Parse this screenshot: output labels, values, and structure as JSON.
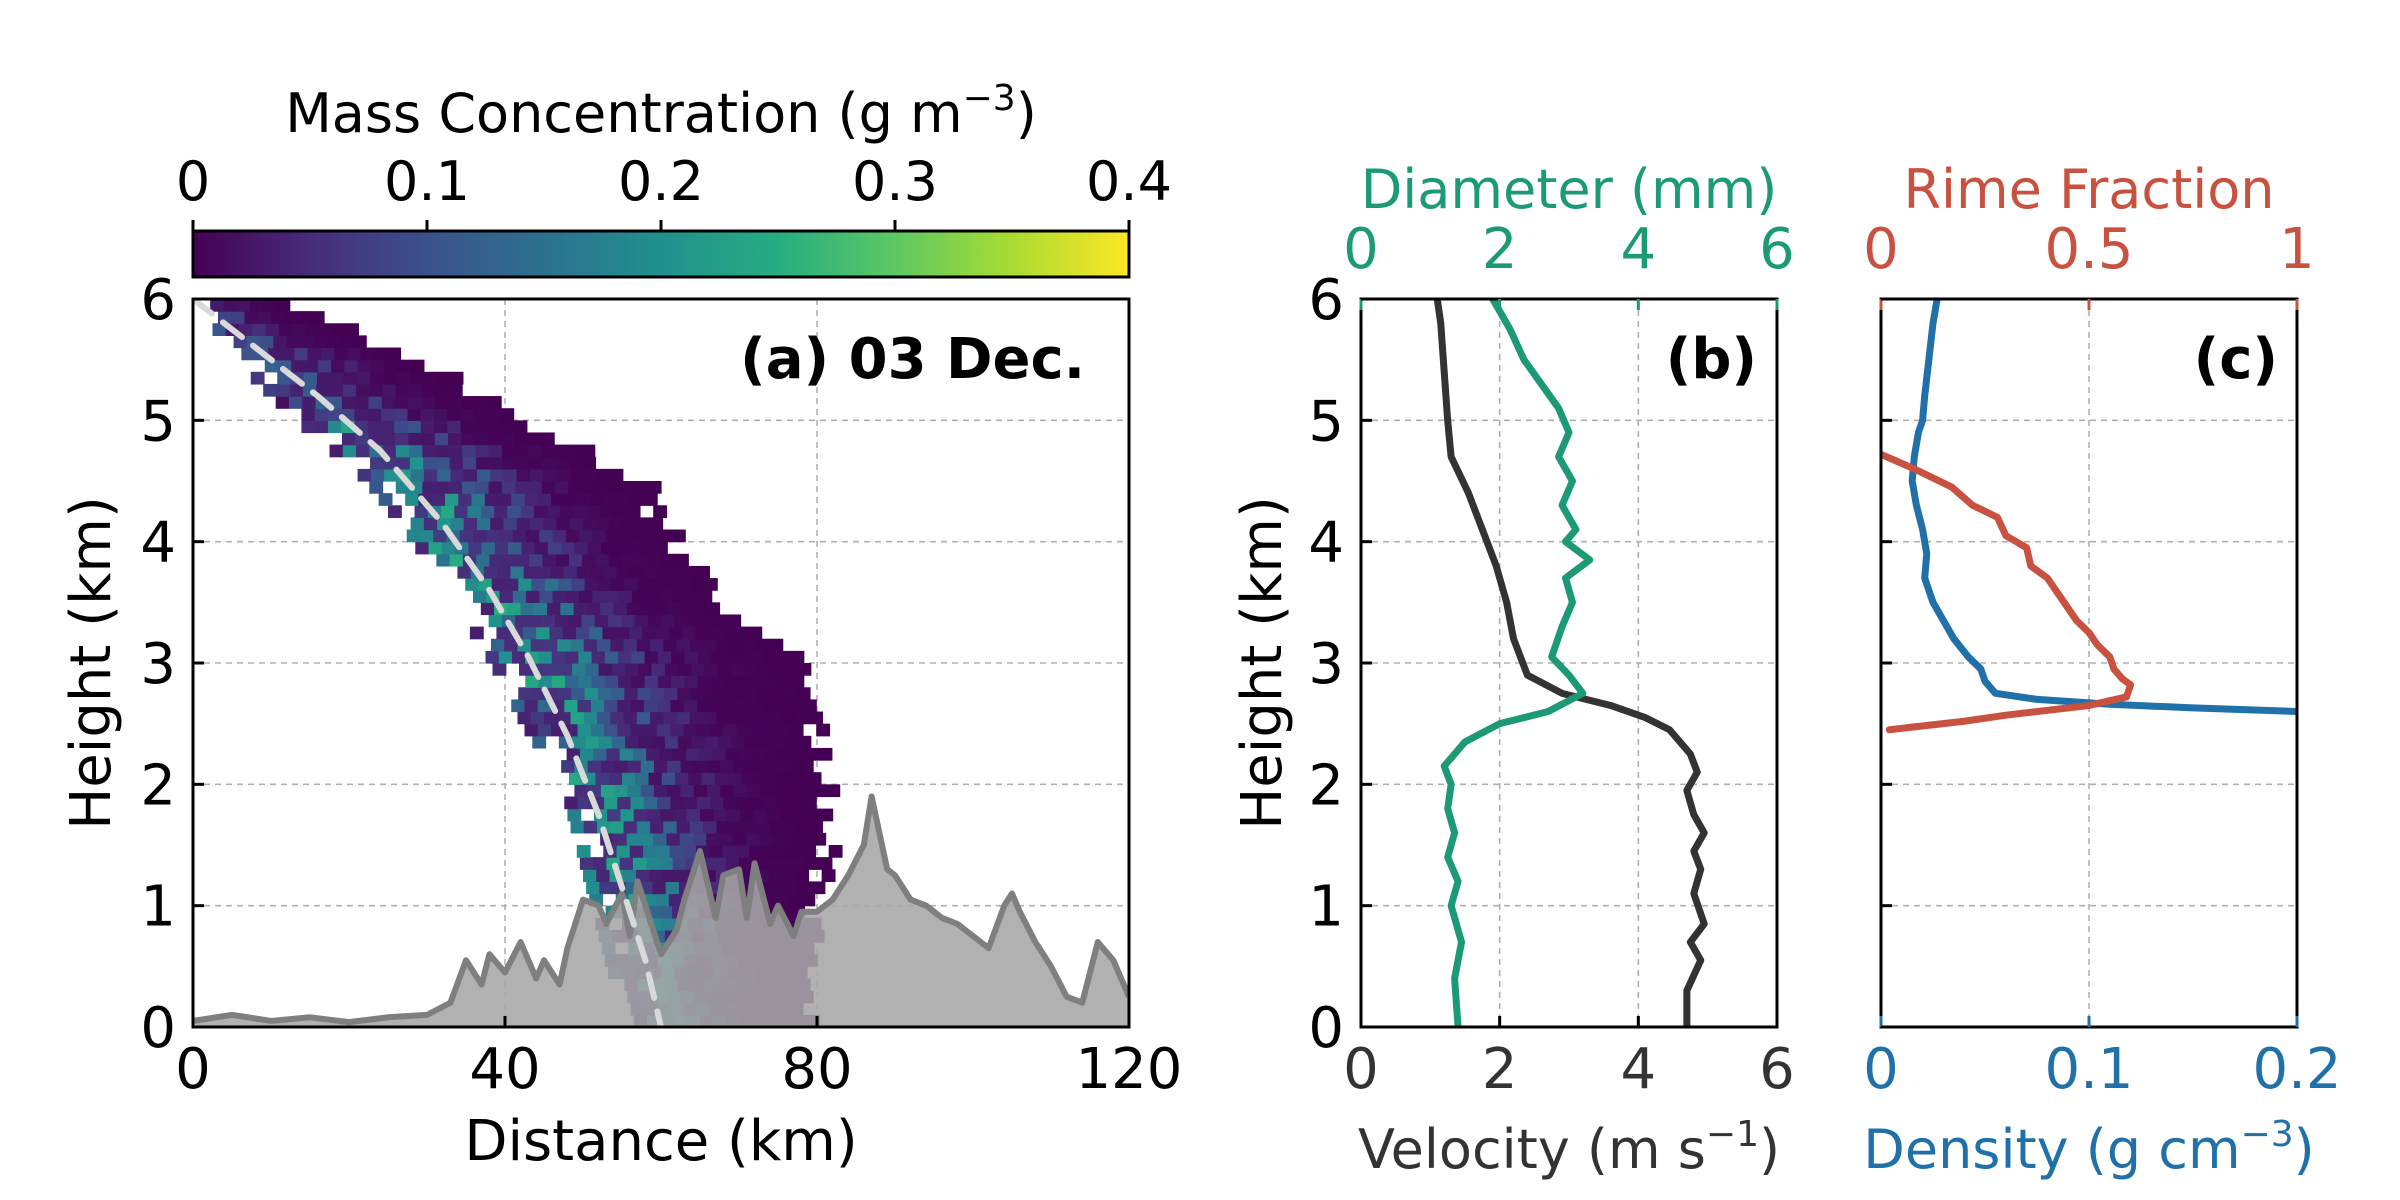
{
  "figure": {
    "colorbar": {
      "label_base": "Mass Concentration (g m",
      "label_sup": "−3",
      "label_end": ")",
      "ticks": [
        "0",
        "0.1",
        "0.2",
        "0.3",
        "0.4"
      ],
      "range": [
        0,
        0.4
      ],
      "colormap": "viridis"
    }
  },
  "colors": {
    "diameter": "#1b9a75",
    "rime": "#c9513f",
    "density": "#2070aa",
    "velocity": "#333333",
    "terrain_fill": "#a6a6a6",
    "terrain_line": "#7f7f7f",
    "trajectory": "#d9d9d9"
  },
  "chart_data": [
    {
      "id": "a",
      "type": "heatmap",
      "title": "(a) 03 Dec.",
      "xlabel": "Distance (km)",
      "ylabel": "Height (km)",
      "xlim": [
        0,
        120
      ],
      "ylim": [
        0,
        6
      ],
      "xticks": [
        "0",
        "40",
        "80",
        "120"
      ],
      "yticks": [
        "0",
        "1",
        "2",
        "3",
        "4",
        "5",
        "6"
      ],
      "grid": true,
      "colorbar_range": [
        0,
        0.4
      ],
      "precip_band": {
        "heights": [
          6.0,
          5.5,
          5.0,
          4.5,
          4.0,
          3.5,
          3.0,
          2.5,
          2.0,
          1.5,
          1.0,
          0.5,
          0.0
        ],
        "left_km": [
          0,
          5,
          13,
          22,
          28,
          33,
          38,
          42,
          47,
          49,
          51,
          53,
          55
        ],
        "right_km": [
          9,
          30,
          42,
          58,
          62,
          69,
          79,
          80,
          82,
          82,
          80,
          79,
          80
        ],
        "peak_concentration": 0.22
      },
      "trajectory_curve": {
        "x": [
          0,
          8,
          16,
          24,
          32,
          38,
          43,
          48,
          52,
          55,
          58,
          60
        ],
        "y": [
          6.0,
          5.6,
          5.2,
          4.75,
          4.15,
          3.6,
          3.05,
          2.4,
          1.75,
          1.15,
          0.55,
          0.0
        ]
      },
      "terrain": {
        "x": [
          0,
          5,
          10,
          15,
          20,
          25,
          30,
          33,
          35,
          37,
          38,
          40,
          42,
          44,
          45,
          47,
          48,
          50,
          52,
          53,
          55,
          56,
          57,
          58,
          60,
          62,
          63,
          65,
          67,
          68,
          70,
          71,
          72,
          74,
          75,
          77,
          78,
          80,
          82,
          84,
          86,
          87,
          88,
          89,
          90,
          92,
          94,
          96,
          98,
          100,
          102,
          104,
          105,
          106,
          108,
          110,
          112,
          114,
          116,
          118,
          120
        ],
        "y": [
          0.05,
          0.1,
          0.05,
          0.08,
          0.04,
          0.08,
          0.1,
          0.2,
          0.55,
          0.35,
          0.6,
          0.45,
          0.7,
          0.4,
          0.55,
          0.35,
          0.65,
          1.05,
          1.0,
          0.85,
          1.1,
          0.75,
          1.2,
          1.0,
          0.6,
          0.8,
          1.05,
          1.45,
          0.9,
          1.25,
          1.3,
          0.9,
          1.35,
          0.85,
          1.0,
          0.75,
          0.95,
          0.95,
          1.05,
          1.25,
          1.5,
          1.9,
          1.6,
          1.3,
          1.25,
          1.05,
          1.0,
          0.9,
          0.85,
          0.75,
          0.65,
          1.0,
          1.1,
          0.95,
          0.7,
          0.5,
          0.25,
          0.2,
          0.7,
          0.55,
          0.25
        ]
      }
    },
    {
      "id": "b",
      "type": "line",
      "title": "(b)",
      "ylabel": "Height (km)",
      "ylim": [
        0,
        6
      ],
      "yticks": [
        "0",
        "1",
        "2",
        "3",
        "4",
        "5",
        "6"
      ],
      "xlabel_bottom_base": "Velocity (m s",
      "xlabel_bottom_sup": "−1",
      "xlabel_bottom_end": ")",
      "xlim_bottom": [
        0,
        6
      ],
      "xticks_bottom": [
        "0",
        "2",
        "4",
        "6"
      ],
      "xlabel_top": "Diameter (mm)",
      "xlim_top": [
        0,
        6
      ],
      "xticks_top": [
        "0",
        "2",
        "4",
        "6"
      ],
      "grid": true,
      "series": [
        {
          "name": "Velocity (m s−1)",
          "axis": "bottom",
          "x": [
            1.1,
            1.15,
            1.2,
            1.25,
            1.3,
            1.55,
            1.75,
            1.95,
            2.1,
            2.2,
            2.4,
            2.9,
            3.6,
            4.1,
            4.45,
            4.6,
            4.75,
            4.85,
            4.7,
            4.8,
            4.95,
            4.8,
            4.9,
            4.8,
            4.95,
            4.75,
            4.9,
            4.7,
            4.7
          ],
          "y": [
            6.0,
            5.8,
            5.4,
            5.0,
            4.7,
            4.4,
            4.1,
            3.8,
            3.5,
            3.2,
            2.9,
            2.75,
            2.65,
            2.55,
            2.45,
            2.35,
            2.25,
            2.1,
            1.95,
            1.75,
            1.6,
            1.45,
            1.3,
            1.1,
            0.85,
            0.7,
            0.55,
            0.3,
            0.0
          ]
        },
        {
          "name": "Diameter (mm)",
          "axis": "top",
          "x": [
            1.9,
            2.15,
            2.35,
            2.6,
            2.85,
            3.0,
            2.85,
            3.05,
            2.9,
            3.1,
            2.95,
            3.3,
            2.95,
            3.05,
            2.9,
            2.75,
            3.0,
            3.2,
            2.7,
            2.0,
            1.5,
            1.2,
            1.3,
            1.25,
            1.35,
            1.25,
            1.4,
            1.3,
            1.45,
            1.35,
            1.4
          ],
          "y": [
            6.0,
            5.75,
            5.5,
            5.3,
            5.1,
            4.9,
            4.7,
            4.5,
            4.3,
            4.1,
            4.0,
            3.85,
            3.7,
            3.5,
            3.3,
            3.05,
            2.9,
            2.75,
            2.6,
            2.5,
            2.35,
            2.15,
            2.0,
            1.8,
            1.6,
            1.4,
            1.2,
            1.0,
            0.7,
            0.4,
            0.0
          ]
        }
      ]
    },
    {
      "id": "c",
      "type": "line",
      "title": "(c)",
      "ylim": [
        0,
        6
      ],
      "xlabel_bottom_base": "Density (g cm",
      "xlabel_bottom_sup": "−3",
      "xlabel_bottom_end": ")",
      "xlim_bottom": [
        0,
        0.2
      ],
      "xticks_bottom": [
        "0",
        "0.1",
        "0.2"
      ],
      "xlabel_top": "Rime Fraction",
      "xlim_top": [
        0,
        1
      ],
      "xticks_top": [
        "0",
        "0.5",
        "1"
      ],
      "grid": true,
      "series": [
        {
          "name": "Density (g cm−3)",
          "axis": "bottom",
          "x": [
            0.027,
            0.025,
            0.023,
            0.021,
            0.02,
            0.018,
            0.016,
            0.015,
            0.017,
            0.02,
            0.022,
            0.021,
            0.025,
            0.03,
            0.035,
            0.042,
            0.048,
            0.05,
            0.055,
            0.075,
            0.11,
            0.15,
            0.2
          ],
          "y": [
            6.0,
            5.8,
            5.5,
            5.2,
            5.0,
            4.9,
            4.7,
            4.5,
            4.3,
            4.1,
            3.9,
            3.7,
            3.5,
            3.35,
            3.2,
            3.05,
            2.95,
            2.85,
            2.75,
            2.7,
            2.66,
            2.63,
            2.6
          ]
        },
        {
          "name": "Rime Fraction",
          "axis": "top",
          "x": [
            0.0,
            0.08,
            0.17,
            0.22,
            0.28,
            0.3,
            0.35,
            0.36,
            0.4,
            0.42,
            0.45,
            0.47,
            0.5,
            0.52,
            0.55,
            0.56,
            0.58,
            0.6,
            0.59,
            0.5,
            0.3,
            0.2,
            0.02
          ],
          "y": [
            4.72,
            4.6,
            4.45,
            4.3,
            4.2,
            4.05,
            3.95,
            3.8,
            3.7,
            3.6,
            3.45,
            3.35,
            3.25,
            3.15,
            3.05,
            2.95,
            2.87,
            2.82,
            2.72,
            2.65,
            2.57,
            2.52,
            2.45
          ]
        }
      ]
    }
  ]
}
